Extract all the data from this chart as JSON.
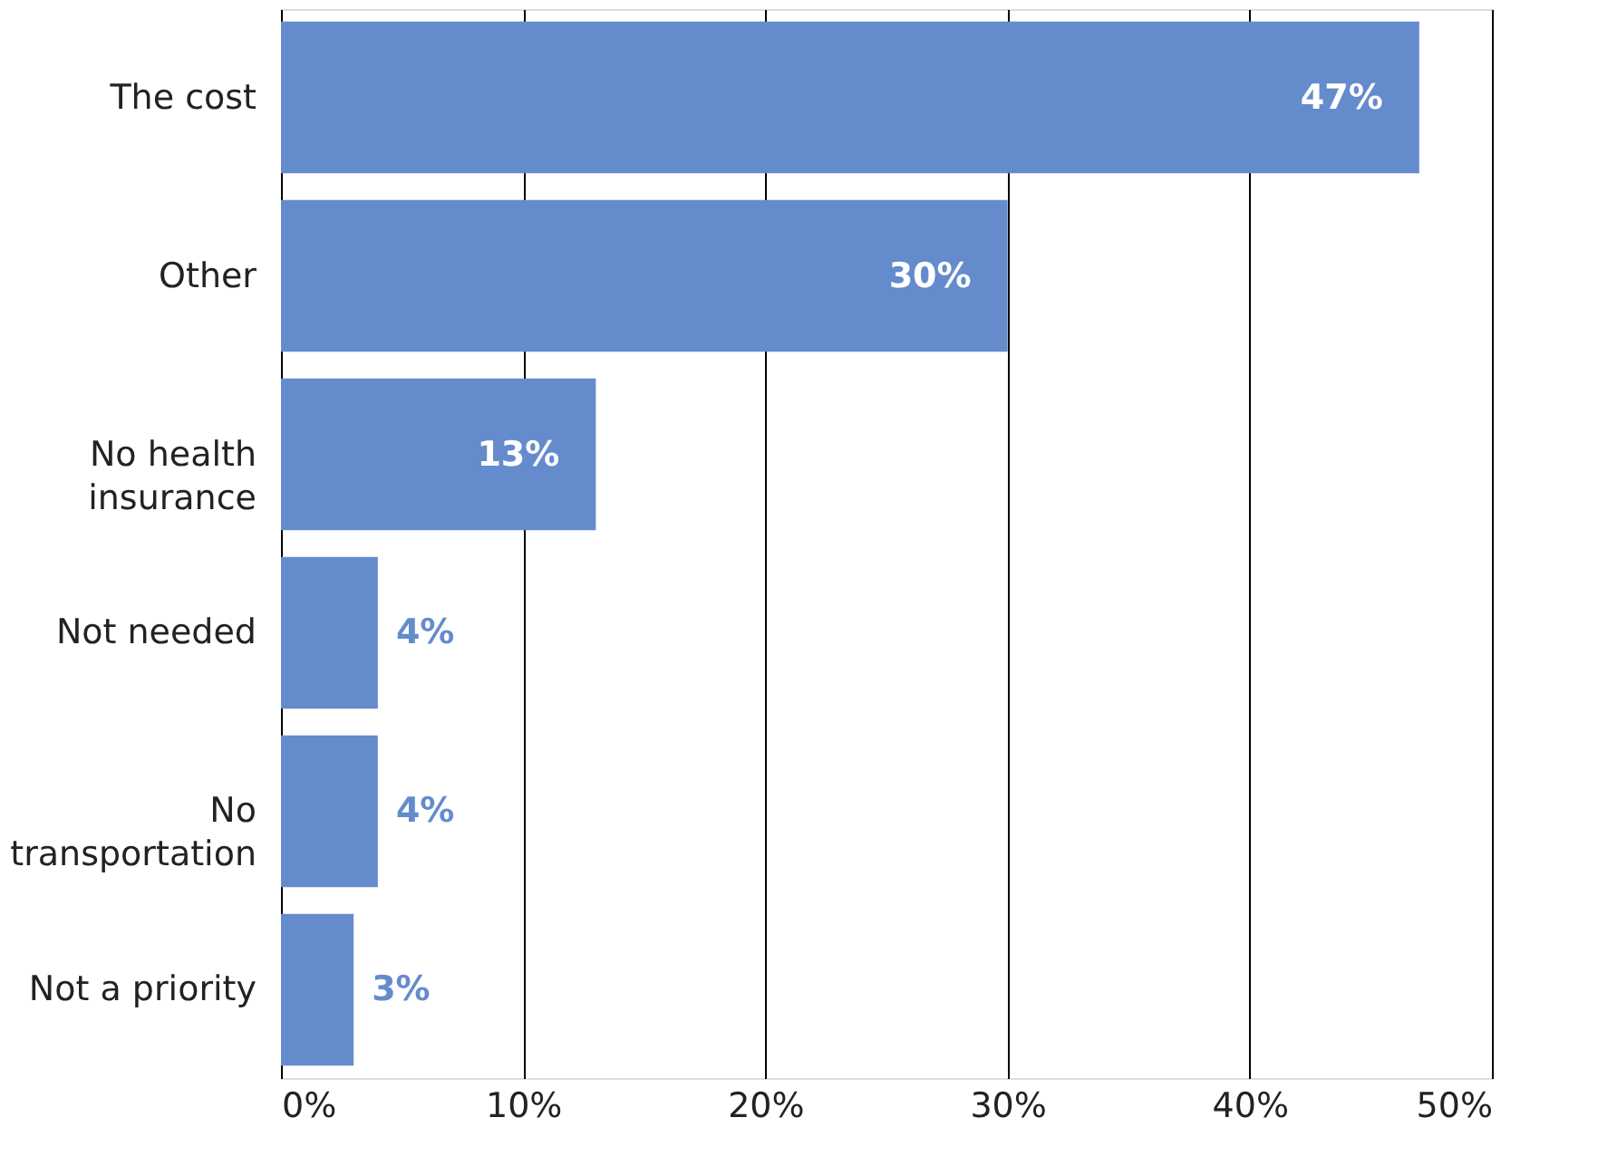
{
  "chart_data": {
    "type": "bar",
    "orientation": "horizontal",
    "categories": [
      "The cost",
      "Other",
      "No health insurance",
      "Not needed",
      "No transportation",
      "Not a priority"
    ],
    "values": [
      47,
      30,
      13,
      4,
      4,
      3
    ],
    "color": "#648ccc",
    "xlim": [
      0,
      50
    ],
    "xticks": [
      {
        "value": 0,
        "label": "0%"
      },
      {
        "value": 10,
        "label": "10%"
      },
      {
        "value": 20,
        "label": "20%"
      },
      {
        "value": 30,
        "label": "30%"
      },
      {
        "value": 40,
        "label": "40%"
      },
      {
        "value": 50,
        "label": "50%"
      }
    ],
    "value_labels": [
      "47%",
      "30%",
      "13%",
      "4%",
      "4%",
      "3%"
    ],
    "grid": "x"
  }
}
